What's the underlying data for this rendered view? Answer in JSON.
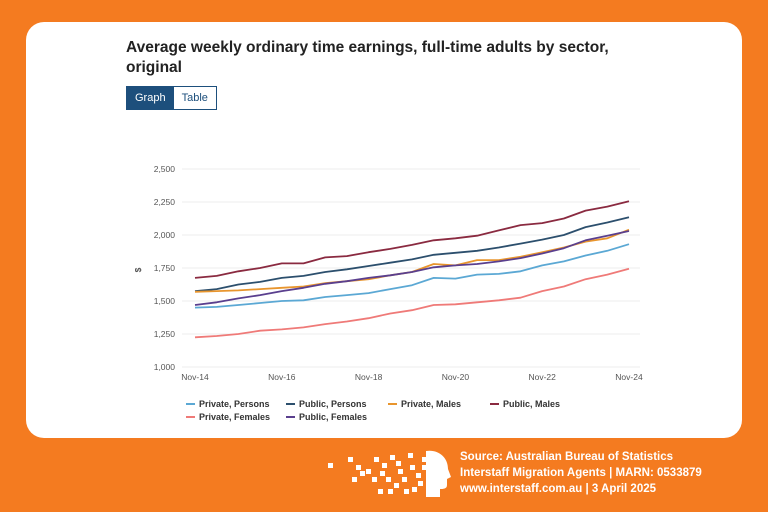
{
  "header": {
    "title": "Average weekly ordinary time earnings, full-time adults by sector, original"
  },
  "tabs": [
    {
      "label": "Graph",
      "active": true
    },
    {
      "label": "Table",
      "active": false
    }
  ],
  "chart_data": {
    "type": "line",
    "title": "Average weekly ordinary time earnings, full-time adults by sector, original",
    "xlabel": "",
    "ylabel": "$",
    "ylim": [
      1000,
      2500
    ],
    "yticks": [
      "1,000",
      "1,250",
      "1,500",
      "1,750",
      "2,000",
      "2,250",
      "2,500"
    ],
    "ytick_values": [
      1000,
      1250,
      1500,
      1750,
      2000,
      2250,
      2500
    ],
    "xticks": [
      "Nov-14",
      "Nov-16",
      "Nov-18",
      "Nov-20",
      "Nov-22",
      "Nov-24"
    ],
    "x": [
      "Nov-14",
      "May-15",
      "Nov-15",
      "May-16",
      "Nov-16",
      "May-17",
      "Nov-17",
      "May-18",
      "Nov-18",
      "May-19",
      "Nov-19",
      "May-20",
      "Nov-20",
      "May-21",
      "Nov-21",
      "May-22",
      "Nov-22",
      "May-23",
      "Nov-23",
      "May-24",
      "Nov-24"
    ],
    "grid": true,
    "legend_position": "bottom",
    "series": [
      {
        "name": "Private, Persons",
        "color": "#5ba8d4",
        "values": [
          1450,
          1455,
          1470,
          1485,
          1500,
          1505,
          1530,
          1545,
          1560,
          1590,
          1620,
          1675,
          1670,
          1700,
          1705,
          1725,
          1770,
          1800,
          1845,
          1880,
          1930
        ]
      },
      {
        "name": "Public, Persons",
        "color": "#2c4f6d",
        "values": [
          1575,
          1590,
          1625,
          1645,
          1675,
          1690,
          1720,
          1740,
          1765,
          1790,
          1815,
          1850,
          1865,
          1880,
          1905,
          1935,
          1965,
          2000,
          2060,
          2095,
          2135
        ]
      },
      {
        "name": "Private, Males",
        "color": "#e8952d",
        "values": [
          1570,
          1575,
          1580,
          1590,
          1600,
          1610,
          1635,
          1650,
          1665,
          1695,
          1720,
          1780,
          1770,
          1810,
          1810,
          1835,
          1870,
          1905,
          1950,
          1975,
          2040
        ]
      },
      {
        "name": "Public, Males",
        "color": "#8a2a40",
        "values": [
          1675,
          1690,
          1725,
          1750,
          1785,
          1785,
          1830,
          1840,
          1870,
          1895,
          1925,
          1960,
          1975,
          1995,
          2035,
          2075,
          2090,
          2125,
          2185,
          2215,
          2255
        ]
      },
      {
        "name": "Private, Females",
        "color": "#ef7a78",
        "values": [
          1225,
          1235,
          1250,
          1275,
          1285,
          1300,
          1325,
          1345,
          1370,
          1405,
          1430,
          1470,
          1475,
          1490,
          1505,
          1525,
          1575,
          1610,
          1665,
          1700,
          1745
        ]
      },
      {
        "name": "Public, Females",
        "color": "#5a3f8e",
        "values": [
          1470,
          1490,
          1520,
          1545,
          1575,
          1600,
          1630,
          1650,
          1675,
          1695,
          1720,
          1755,
          1770,
          1780,
          1800,
          1825,
          1860,
          1900,
          1960,
          1995,
          2030
        ]
      }
    ]
  },
  "footer": {
    "line1": "Source: Australian Bureau of Statistics",
    "line2": "Interstaff Migration Agents | MARN: 0533879",
    "line3": "www.interstaff.com.au | 3 April 2025"
  },
  "logo": {
    "icon": "pixel-head-logo"
  }
}
